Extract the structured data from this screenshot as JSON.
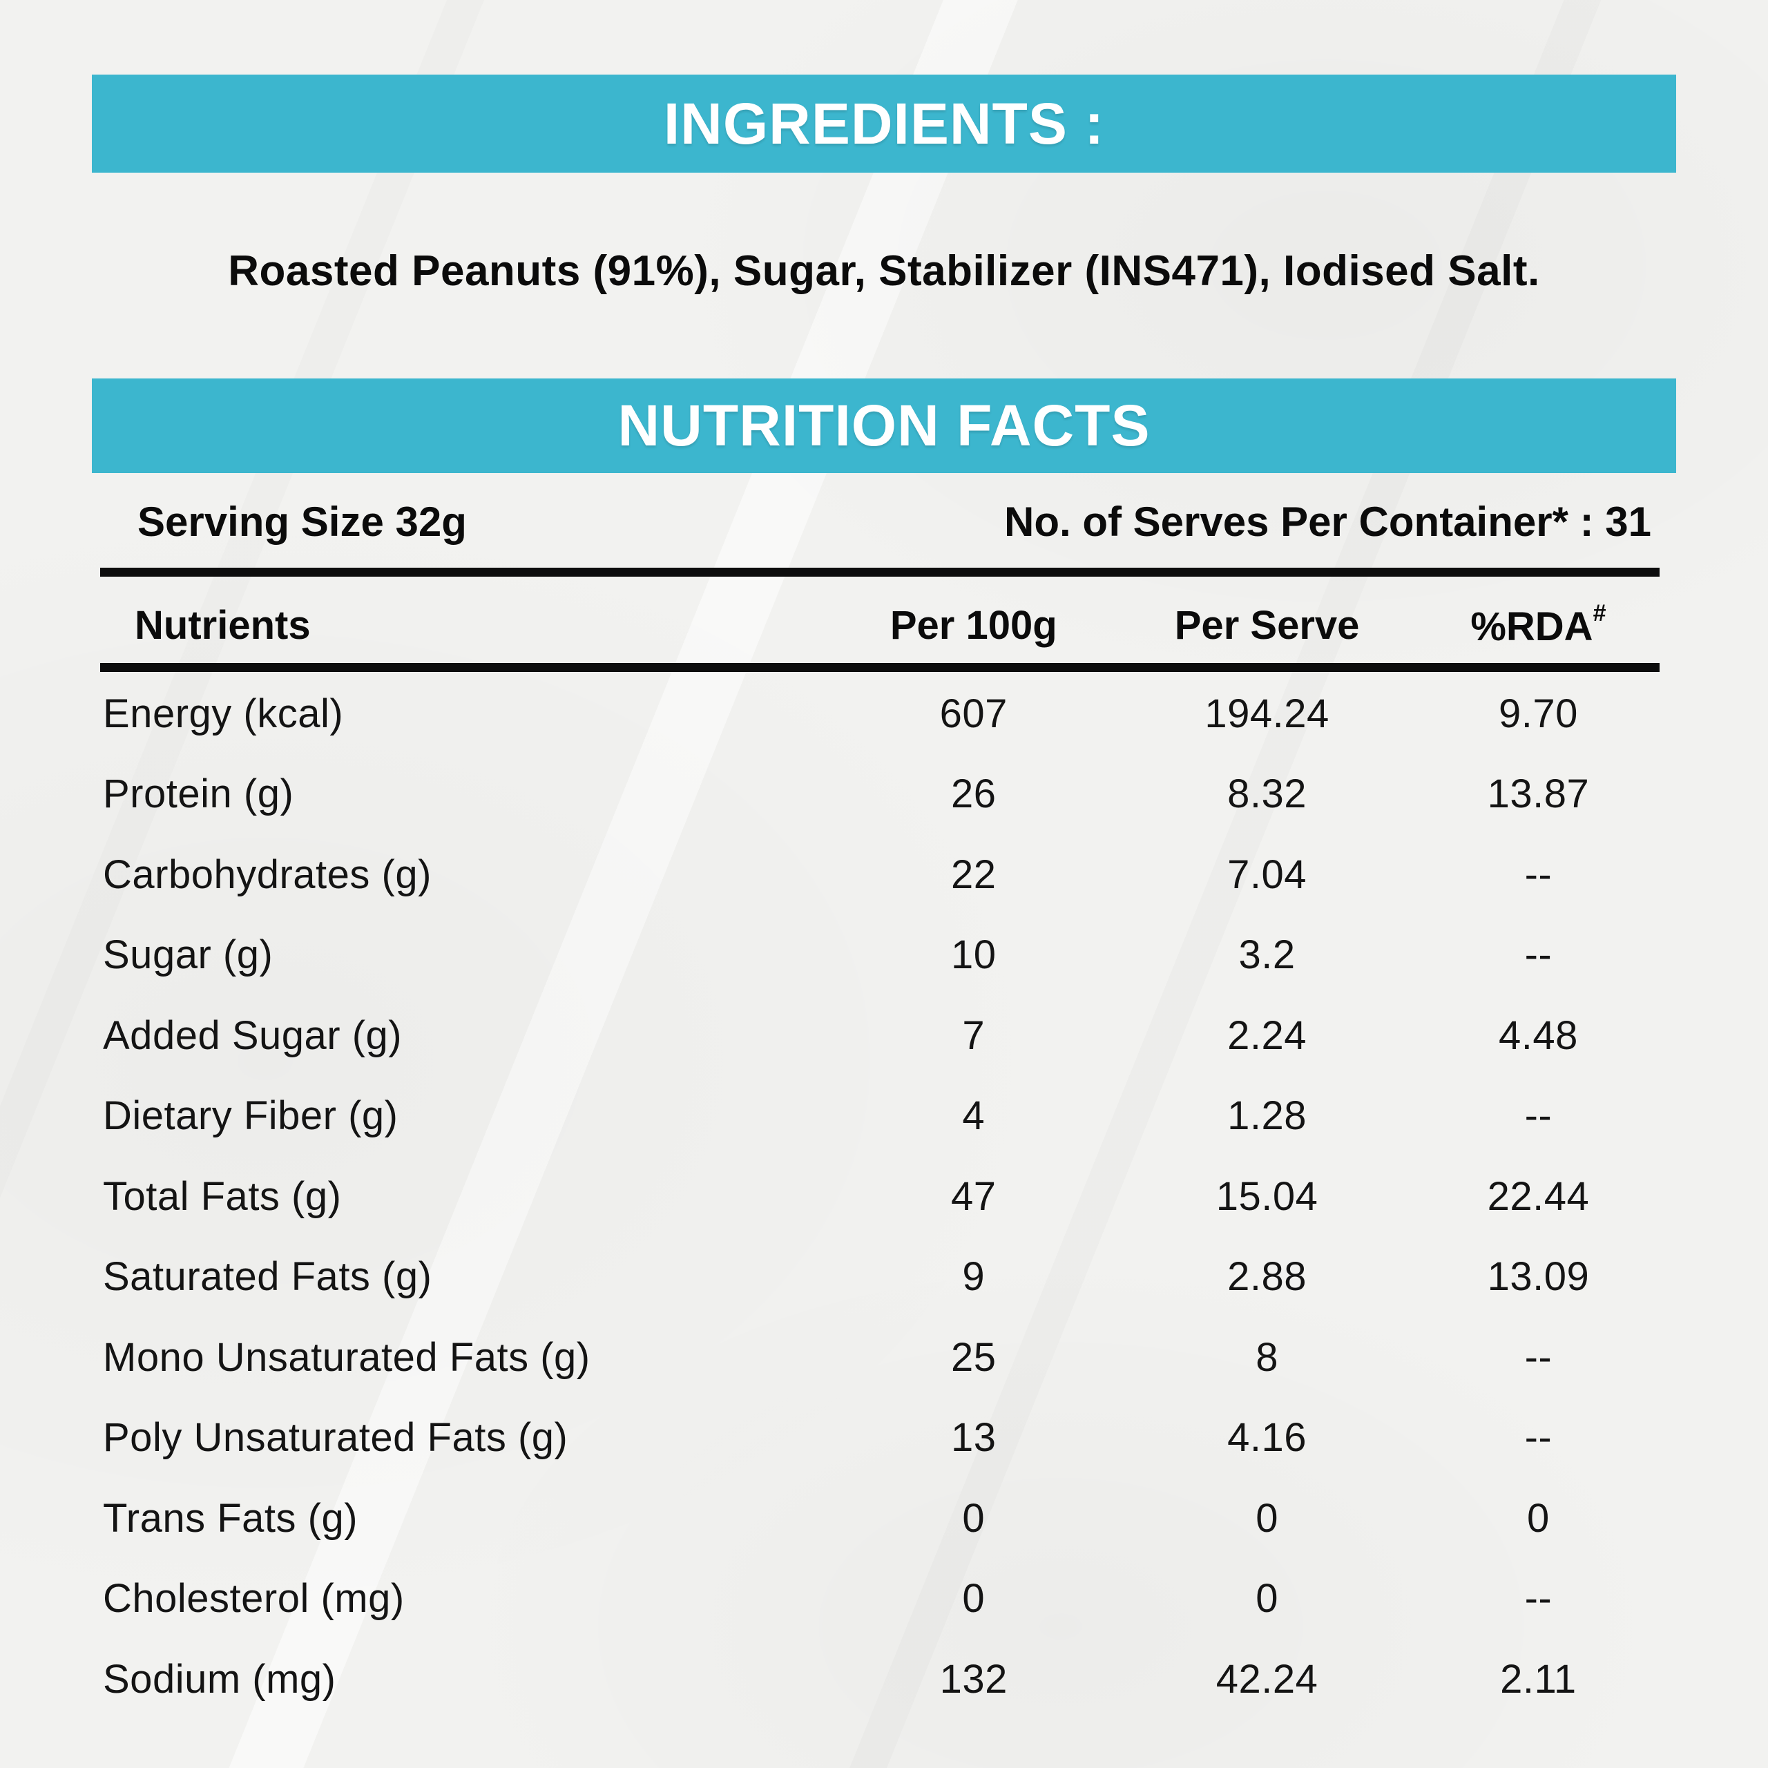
{
  "colors": {
    "accent_teal": "#3cb6ce",
    "background": "#f2f2f0",
    "text": "#0b0b0b"
  },
  "ingredients": {
    "title": "INGREDIENTS :",
    "text": "Roasted Peanuts (91%), Sugar, Stabilizer (INS471), Iodised Salt."
  },
  "nutrition": {
    "title": "NUTRITION FACTS",
    "serving_size": "Serving Size 32g",
    "serves_per_container": "No. of Serves Per Container* : 31",
    "columns": {
      "nutrients": "Nutrients",
      "per_100g": "Per 100g",
      "per_serve": "Per Serve",
      "rda": "%RDA",
      "rda_superscript": "#"
    },
    "rows": [
      {
        "nutrient": "Energy (kcal)",
        "per_100g": "607",
        "per_serve": "194.24",
        "rda": "9.70"
      },
      {
        "nutrient": "Protein (g)",
        "per_100g": "26",
        "per_serve": "8.32",
        "rda": "13.87"
      },
      {
        "nutrient": "Carbohydrates (g)",
        "per_100g": "22",
        "per_serve": "7.04",
        "rda": "--"
      },
      {
        "nutrient": "Sugar (g)",
        "per_100g": "10",
        "per_serve": "3.2",
        "rda": "--"
      },
      {
        "nutrient": "Added Sugar (g)",
        "per_100g": "7",
        "per_serve": "2.24",
        "rda": "4.48"
      },
      {
        "nutrient": "Dietary Fiber (g)",
        "per_100g": "4",
        "per_serve": "1.28",
        "rda": "--"
      },
      {
        "nutrient": "Total Fats (g)",
        "per_100g": "47",
        "per_serve": "15.04",
        "rda": "22.44"
      },
      {
        "nutrient": "Saturated Fats (g)",
        "per_100g": "9",
        "per_serve": "2.88",
        "rda": "13.09"
      },
      {
        "nutrient": "Mono Unsaturated Fats (g)",
        "per_100g": "25",
        "per_serve": "8",
        "rda": "--"
      },
      {
        "nutrient": "Poly Unsaturated Fats (g)",
        "per_100g": "13",
        "per_serve": "4.16",
        "rda": "--"
      },
      {
        "nutrient": "Trans Fats (g)",
        "per_100g": "0",
        "per_serve": "0",
        "rda": "0"
      },
      {
        "nutrient": "Cholesterol (mg)",
        "per_100g": "0",
        "per_serve": "0",
        "rda": "--"
      },
      {
        "nutrient": "Sodium (mg)",
        "per_100g": "132",
        "per_serve": "42.24",
        "rda": "2.11"
      }
    ]
  }
}
